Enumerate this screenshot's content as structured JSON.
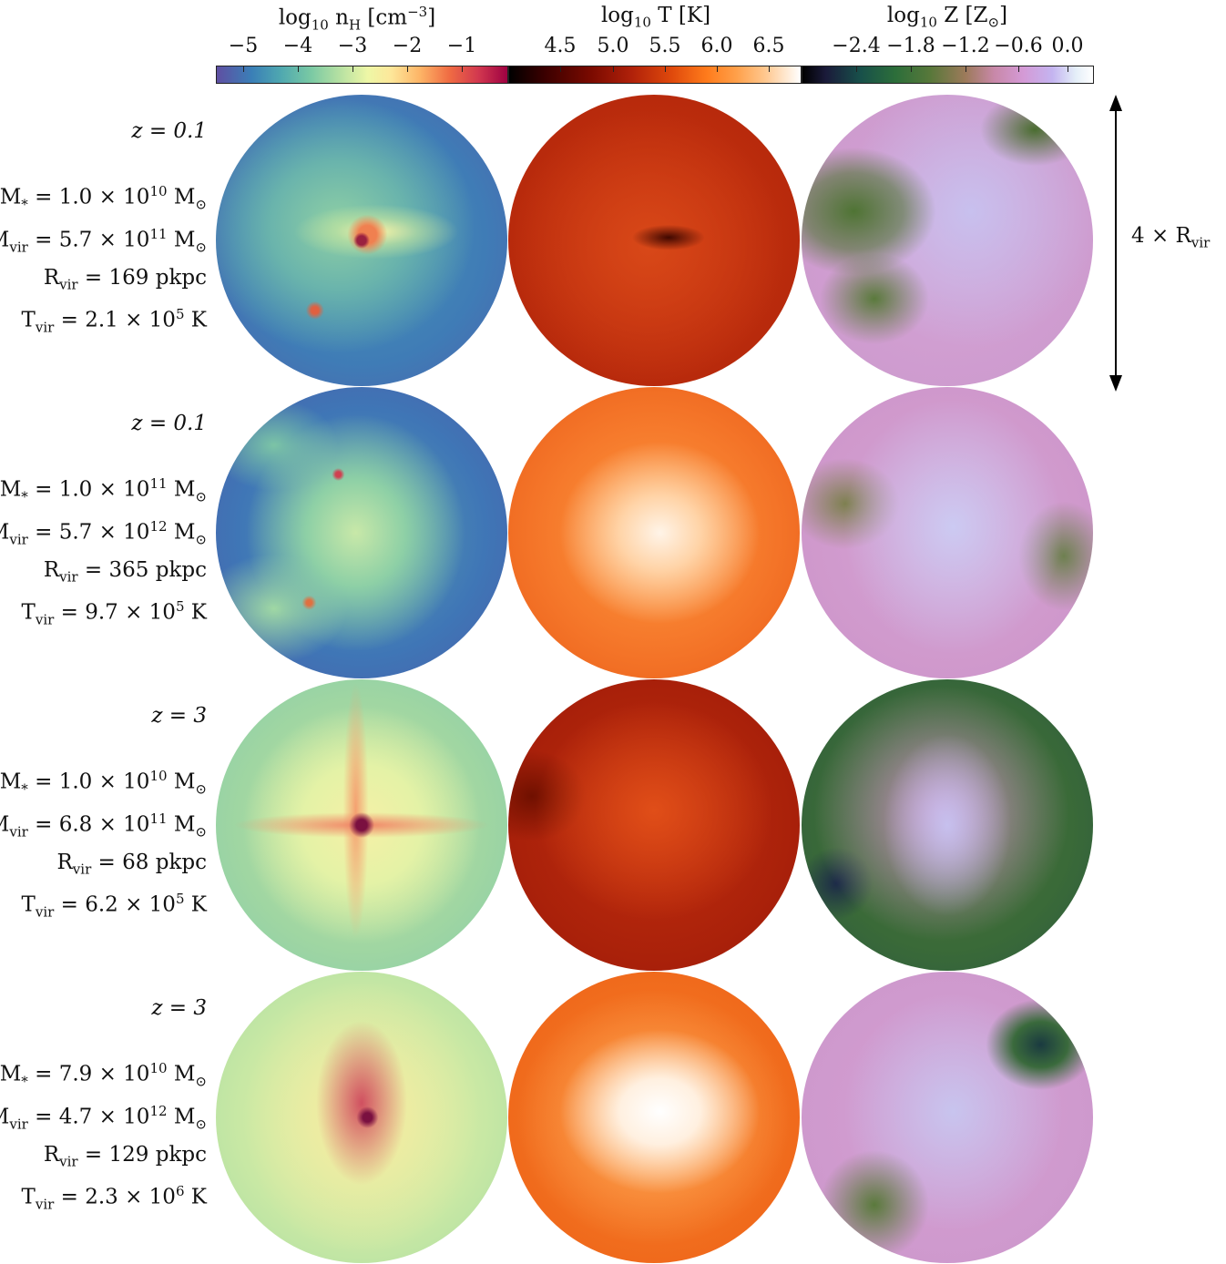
{
  "colorbars": [
    {
      "title_main": "log",
      "title_sub": "10",
      "title_rest": " n",
      "title_sub2": "H",
      "title_unit": " [cm",
      "title_sup": "−3",
      "title_end": "]",
      "ticks": [
        "−5",
        "−4",
        "−3",
        "−2",
        "−1"
      ],
      "colormap": "Spectral_r"
    },
    {
      "title_main": "log",
      "title_sub": "10",
      "title_rest": " T [K]",
      "ticks": [
        "4.5",
        "5.0",
        "5.5",
        "6.0",
        "6.5"
      ],
      "colormap": "gist_heat"
    },
    {
      "title_main": "log",
      "title_sub": "10",
      "title_rest": " Z [Z",
      "title_sub2": "⊙",
      "title_end": "]",
      "ticks": [
        "−2.4",
        "−1.8",
        "−1.2",
        "−0.6",
        "0.0"
      ],
      "colormap": "cubehelix"
    }
  ],
  "rows": [
    {
      "z": "z = 0.1",
      "mstar_coef": "1.0",
      "mstar_exp": "10",
      "mvir_coef": "5.7",
      "mvir_exp": "11",
      "rvir": "169 pkpc",
      "tvir_coef": "2.1",
      "tvir_exp": "5"
    },
    {
      "z": "z = 0.1",
      "mstar_coef": "1.0",
      "mstar_exp": "11",
      "mvir_coef": "5.7",
      "mvir_exp": "12",
      "rvir": "365 pkpc",
      "tvir_coef": "9.7",
      "tvir_exp": "5"
    },
    {
      "z": "z = 3",
      "mstar_coef": "1.0",
      "mstar_exp": "10",
      "mvir_coef": "6.8",
      "mvir_exp": "11",
      "rvir": "68 pkpc",
      "tvir_coef": "6.2",
      "tvir_exp": "5"
    },
    {
      "z": "z = 3",
      "mstar_coef": "7.9",
      "mstar_exp": "10",
      "mvir_coef": "4.7",
      "mvir_exp": "12",
      "rvir": "129 pkpc",
      "tvir_coef": "2.3",
      "tvir_exp": "6"
    }
  ],
  "scale": {
    "prefix": "4 × R",
    "sub": "vir"
  },
  "colors": {
    "density_cool": "#4a6fb5",
    "temp_warm": "#c62a0c",
    "metal_pink": "#d8a0d8",
    "metal_green": "#3f6b2f"
  }
}
